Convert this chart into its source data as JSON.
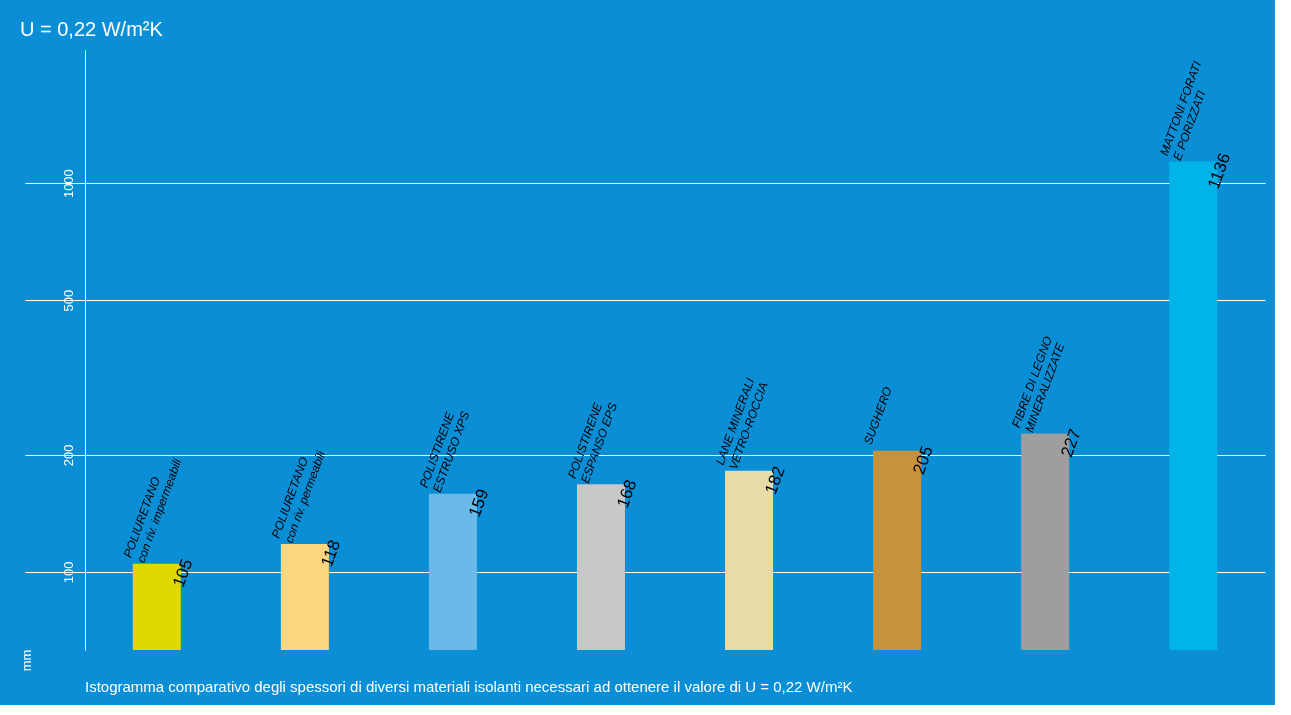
{
  "chart_data": {
    "type": "bar",
    "title": "U = 0,22 W/m²K",
    "categories": [
      "POLIURETANO\ncon riv. impermeabili",
      "POLIURETANO\ncon riv. permeabili",
      "POLISTIRENE\nESTRUSO XPS",
      "POLISTIRENE\nESPANSO EPS",
      "LANE MINERALI\nVETRO-ROCCIA",
      "SUGHERO",
      "FIBRE DI LEGNO\nMINERALIZZATE",
      "MATTONI FORATI\nE PORIZZATI"
    ],
    "values": [
      105,
      118,
      159,
      168,
      182,
      205,
      227,
      1136
    ],
    "colors": [
      "#e0d800",
      "#fdd57e",
      "#6ab9e8",
      "#c8c8c8",
      "#e6dca8",
      "#c8913c",
      "#9e9e9e",
      "#00b4e8"
    ],
    "data_labels": true,
    "log": true,
    "ylabel": "mm",
    "ylim": [
      63,
      2200
    ],
    "yticks": [
      100,
      200,
      500,
      1000
    ],
    "grid": "y",
    "annotations": [
      "Istogramma comparativo degli spessori di diversi materiali isolanti necessari ad ottenere il valore di U = 0,22 W/m²K"
    ]
  }
}
